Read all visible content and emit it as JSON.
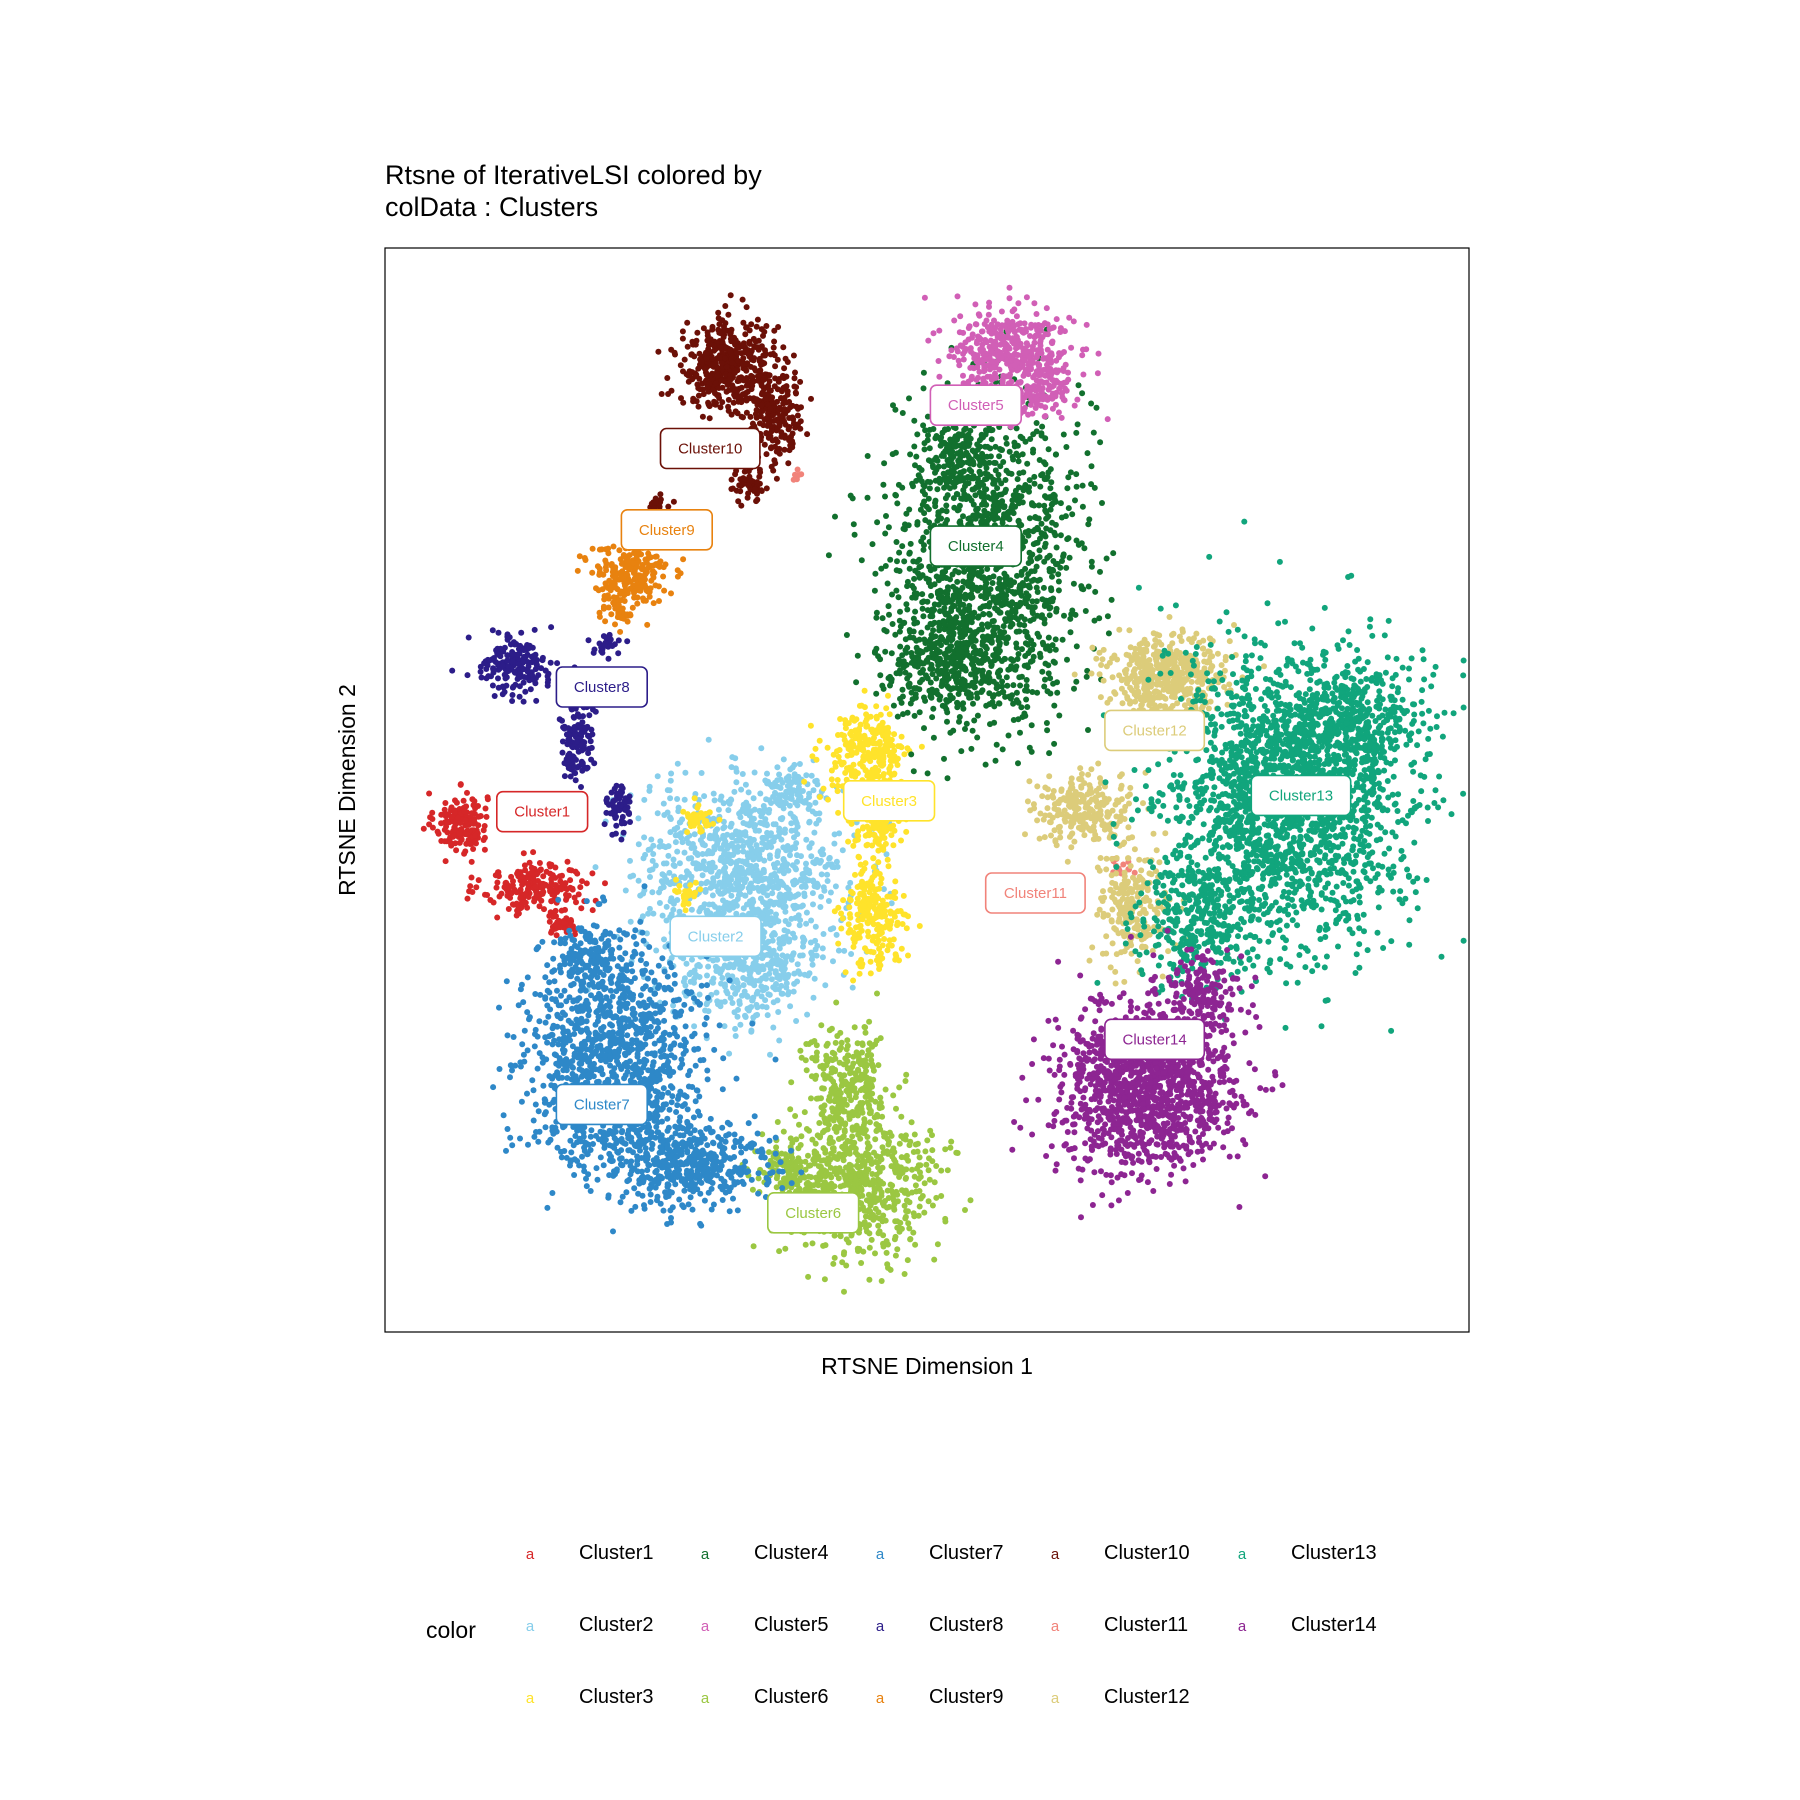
{
  "chart_data": {
    "type": "scatter",
    "title_lines": [
      "Rtsne of IterativeLSI  colored by",
      "colData :  Clusters"
    ],
    "xlabel": "RTSNE Dimension 1",
    "ylabel": "RTSNE Dimension 2",
    "xlim": [
      0,
      100
    ],
    "ylim": [
      0,
      100
    ],
    "grid": false,
    "legend": {
      "title": "color",
      "placement": "bottom",
      "key_glyph": "a",
      "columns": [
        [
          "Cluster1",
          "Cluster2",
          "Cluster3"
        ],
        [
          "Cluster4",
          "Cluster5",
          "Cluster6"
        ],
        [
          "Cluster7",
          "Cluster8",
          "Cluster9"
        ],
        [
          "Cluster10",
          "Cluster11",
          "Cluster12"
        ],
        [
          "Cluster13",
          "Cluster14"
        ]
      ]
    },
    "series": [
      {
        "name": "Cluster1",
        "color": "#D62728",
        "label_at": [
          14.5,
          48.0
        ],
        "blobs": [
          {
            "c": [
              7.0,
              47.0
            ],
            "r": [
              2.2,
              2.5
            ],
            "n": 170
          },
          {
            "c": [
              14.0,
              41.0
            ],
            "r": [
              4.5,
              2.2
            ],
            "n": 200
          },
          {
            "c": [
              16.5,
              38.0
            ],
            "r": [
              1.5,
              1.5
            ],
            "n": 40
          }
        ]
      },
      {
        "name": "Cluster2",
        "color": "#87CEEB",
        "label_at": [
          30.5,
          36.5
        ],
        "blobs": [
          {
            "c": [
              33.0,
              43.0
            ],
            "r": [
              8.5,
              7.0
            ],
            "n": 900
          },
          {
            "c": [
              33.5,
              34.0
            ],
            "r": [
              6.5,
              5.0
            ],
            "n": 450
          },
          {
            "c": [
              37.5,
              50.0
            ],
            "r": [
              2.5,
              2.5
            ],
            "n": 80
          }
        ]
      },
      {
        "name": "Cluster3",
        "color": "#FFE32B",
        "label_at": [
          46.5,
          49.0
        ],
        "blobs": [
          {
            "c": [
              44.5,
              53.0
            ],
            "r": [
              3.5,
              4.0
            ],
            "n": 280
          },
          {
            "c": [
              45.5,
              47.0
            ],
            "r": [
              2.0,
              2.5
            ],
            "n": 120
          },
          {
            "c": [
              45.0,
              38.5
            ],
            "r": [
              2.5,
              4.5
            ],
            "n": 220
          },
          {
            "c": [
              29.0,
              47.5
            ],
            "r": [
              1.3,
              1.3
            ],
            "n": 35
          },
          {
            "c": [
              28.0,
              40.5
            ],
            "r": [
              1.2,
              1.2
            ],
            "n": 25
          }
        ]
      },
      {
        "name": "Cluster4",
        "color": "#12702E",
        "label_at": [
          54.5,
          72.5
        ],
        "blobs": [
          {
            "c": [
              55.5,
              71.0
            ],
            "r": [
              8.0,
              13.0
            ],
            "n": 1400
          },
          {
            "c": [
              52.0,
              62.0
            ],
            "r": [
              5.5,
              4.5
            ],
            "n": 350
          },
          {
            "c": [
              53.0,
              81.5
            ],
            "r": [
              3.0,
              3.5
            ],
            "n": 150
          }
        ]
      },
      {
        "name": "Cluster5",
        "color": "#D15FB6",
        "label_at": [
          54.5,
          85.5
        ],
        "blobs": [
          {
            "c": [
              58.0,
              90.0
            ],
            "r": [
              5.0,
              4.0
            ],
            "n": 450
          },
          {
            "c": [
              60.5,
              86.5
            ],
            "r": [
              2.5,
              2.0
            ],
            "n": 80
          }
        ]
      },
      {
        "name": "Cluster6",
        "color": "#9BC742",
        "label_at": [
          39.5,
          11.0
        ],
        "blobs": [
          {
            "c": [
              43.5,
              13.5
            ],
            "r": [
              6.5,
              6.0
            ],
            "n": 650
          },
          {
            "c": [
              42.5,
              22.5
            ],
            "r": [
              3.5,
              4.5
            ],
            "n": 280
          },
          {
            "c": [
              37.0,
              15.0
            ],
            "r": [
              2.5,
              2.5
            ],
            "n": 100
          }
        ]
      },
      {
        "name": "Cluster7",
        "color": "#2E88C8",
        "label_at": [
          20.0,
          21.0
        ],
        "blobs": [
          {
            "c": [
              21.0,
              25.0
            ],
            "r": [
              7.5,
              9.0
            ],
            "n": 1200
          },
          {
            "c": [
              28.0,
              15.5
            ],
            "r": [
              7.0,
              3.5
            ],
            "n": 450
          },
          {
            "c": [
              19.0,
              34.0
            ],
            "r": [
              3.0,
              3.0
            ],
            "n": 150
          }
        ]
      },
      {
        "name": "Cluster8",
        "color": "#2C1D89",
        "label_at": [
          20.0,
          59.5
        ],
        "blobs": [
          {
            "c": [
              12.0,
              61.5
            ],
            "r": [
              3.0,
              2.5
            ],
            "n": 180
          },
          {
            "c": [
              18.0,
              59.0
            ],
            "r": [
              1.5,
              1.5
            ],
            "n": 50
          },
          {
            "c": [
              17.5,
              54.5
            ],
            "r": [
              1.3,
              3.5
            ],
            "n": 120
          },
          {
            "c": [
              21.5,
              48.5
            ],
            "r": [
              1.2,
              2.0
            ],
            "n": 60
          },
          {
            "c": [
              20.5,
              63.5
            ],
            "r": [
              1.5,
              1.0
            ],
            "n": 30
          }
        ]
      },
      {
        "name": "Cluster9",
        "color": "#E8820F",
        "label_at": [
          26.0,
          74.0
        ],
        "blobs": [
          {
            "c": [
              22.5,
              70.0
            ],
            "r": [
              3.5,
              2.5
            ],
            "n": 220
          },
          {
            "c": [
              21.5,
              66.5
            ],
            "r": [
              1.3,
              1.5
            ],
            "n": 40
          }
        ]
      },
      {
        "name": "Cluster10",
        "color": "#6B1007",
        "label_at": [
          30.0,
          81.5
        ],
        "blobs": [
          {
            "c": [
              31.5,
              89.0
            ],
            "r": [
              4.0,
              4.0
            ],
            "n": 450
          },
          {
            "c": [
              36.0,
              84.5
            ],
            "r": [
              2.5,
              3.5
            ],
            "n": 180
          },
          {
            "c": [
              33.5,
              78.5
            ],
            "r": [
              2.0,
              2.0
            ],
            "n": 60
          },
          {
            "c": [
              25.0,
              76.5
            ],
            "r": [
              0.8,
              0.8
            ],
            "n": 15
          }
        ]
      },
      {
        "name": "Cluster11",
        "color": "#F1837A",
        "label_at": [
          60.0,
          40.5
        ],
        "blobs": [
          {
            "c": [
              67.5,
              43.0
            ],
            "r": [
              1.0,
              1.0
            ],
            "n": 15
          },
          {
            "c": [
              38.0,
              79.0
            ],
            "r": [
              0.5,
              0.5
            ],
            "n": 6
          }
        ]
      },
      {
        "name": "Cluster12",
        "color": "#DCCC7A",
        "label_at": [
          71.0,
          55.5
        ],
        "blobs": [
          {
            "c": [
              72.0,
              60.5
            ],
            "r": [
              5.0,
              3.5
            ],
            "n": 500
          },
          {
            "c": [
              64.5,
              48.0
            ],
            "r": [
              4.0,
              3.0
            ],
            "n": 250
          },
          {
            "c": [
              69.0,
              39.5
            ],
            "r": [
              3.0,
              5.0
            ],
            "n": 220
          }
        ]
      },
      {
        "name": "Cluster13",
        "color": "#11A57C",
        "label_at": [
          84.5,
          49.5
        ],
        "blobs": [
          {
            "c": [
              83.0,
              49.0
            ],
            "r": [
              10.0,
              12.0
            ],
            "n": 2000
          },
          {
            "c": [
              75.0,
              38.0
            ],
            "r": [
              5.0,
              5.0
            ],
            "n": 300
          },
          {
            "c": [
              89.0,
              56.0
            ],
            "r": [
              6.0,
              5.0
            ],
            "n": 400
          }
        ]
      },
      {
        "name": "Cluster14",
        "color": "#8D2592",
        "label_at": [
          71.0,
          27.0
        ],
        "blobs": [
          {
            "c": [
              70.0,
              22.5
            ],
            "r": [
              7.5,
              7.0
            ],
            "n": 1300
          },
          {
            "c": [
              75.0,
              31.5
            ],
            "r": [
              3.5,
              3.0
            ],
            "n": 150
          }
        ]
      }
    ]
  }
}
